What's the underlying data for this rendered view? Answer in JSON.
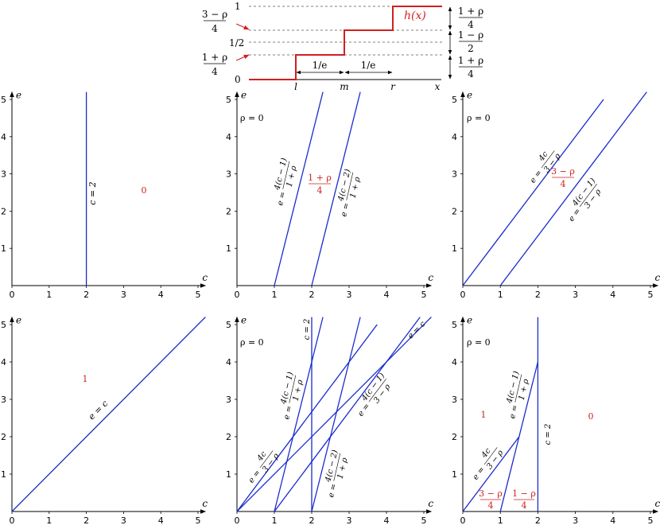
{
  "colors": {
    "axis": "#000000",
    "blue": "#1a2bcc",
    "red": "#d11f1f",
    "dash": "#555555"
  },
  "top_diagram": {
    "func_label": "h(x)",
    "y_labels": [
      "0",
      "1/2",
      "1"
    ],
    "left_fracs": [
      {
        "num": "3 − ρ",
        "den": "4"
      },
      {
        "num": "1 + ρ",
        "den": "4"
      }
    ],
    "right_fracs": [
      {
        "num": "1 + ρ",
        "den": "4"
      },
      {
        "num": "1 − ρ",
        "den": "2"
      },
      {
        "num": "1 + ρ",
        "den": "4"
      }
    ],
    "x_points": [
      "l",
      "m",
      "r",
      "x"
    ],
    "interval_labels": [
      "1/e",
      "1/e"
    ]
  },
  "panels": [
    {
      "id": "p1",
      "axis_x": "c",
      "axis_y": "e",
      "xticks": [
        "0",
        "1",
        "2",
        "3",
        "4",
        "5"
      ],
      "yticks": [
        "1",
        "2",
        "3",
        "4",
        "5"
      ],
      "lines": [
        {
          "name": "e-vs-c",
          "x1": 2,
          "y1": 0,
          "x2": 2,
          "y2": 5.2
        }
      ],
      "labels": [
        {
          "text": "c = 2"
        }
      ],
      "region_labels": [
        {
          "text": "0"
        }
      ]
    },
    {
      "id": "p2",
      "axis_x": "c",
      "axis_y": "e",
      "xticks": [
        "0",
        "1",
        "2",
        "3",
        "4",
        "5"
      ],
      "yticks": [
        "1",
        "2",
        "3",
        "4",
        "5"
      ],
      "rho_label": "ρ = 0",
      "lines": [
        {
          "name": "4c-1",
          "x1": 1,
          "y1": 0,
          "x2": 2.3,
          "y2": 5.2
        },
        {
          "name": "4c-2",
          "x1": 2,
          "y1": 0,
          "x2": 3.3,
          "y2": 5.2
        }
      ],
      "labels": [
        {
          "lhs": "e =",
          "num": "4(c − 1)",
          "den": "1 + ρ"
        },
        {
          "lhs": "e =",
          "num": "4(c − 2)",
          "den": "1 + ρ"
        }
      ],
      "region_labels": [
        {
          "num": "1 + ρ",
          "den": "4"
        }
      ]
    },
    {
      "id": "p3",
      "axis_x": "c",
      "axis_y": "e",
      "xticks": [
        "0",
        "1",
        "2",
        "3",
        "4",
        "5"
      ],
      "yticks": [
        "1",
        "2",
        "3",
        "4",
        "5"
      ],
      "rho_label": "ρ = 0",
      "lines": [
        {
          "name": "4c-3",
          "x1": 0,
          "y1": 0,
          "x2": 3.75,
          "y2": 5
        },
        {
          "name": "4c-1-3",
          "x1": 1,
          "y1": 0,
          "x2": 4.9,
          "y2": 5.2
        }
      ],
      "labels": [
        {
          "lhs": "e =",
          "num": "4c",
          "den": "3 − ρ"
        },
        {
          "lhs": "e =",
          "num": "4(c − 1)",
          "den": "3 − ρ"
        }
      ],
      "region_labels": [
        {
          "num": "3 − ρ",
          "den": "4"
        }
      ]
    },
    {
      "id": "p4",
      "axis_x": "c",
      "axis_y": "e",
      "xticks": [
        "0",
        "1",
        "2",
        "3",
        "4",
        "5"
      ],
      "yticks": [
        "1",
        "2",
        "3",
        "4",
        "5"
      ],
      "lines": [
        {
          "name": "e-eq-c",
          "x1": 0,
          "y1": 0,
          "x2": 5.2,
          "y2": 5.2
        }
      ],
      "labels": [
        {
          "text": "e = c"
        }
      ],
      "region_labels": [
        {
          "text": "1"
        }
      ]
    },
    {
      "id": "p5",
      "axis_x": "c",
      "axis_y": "e",
      "xticks": [
        "0",
        "1",
        "2",
        "3",
        "4",
        "5"
      ],
      "yticks": [
        "1",
        "2",
        "3",
        "4",
        "5"
      ],
      "rho_label": "ρ = 0",
      "lines": [
        {
          "name": "c2",
          "x1": 2,
          "y1": 0,
          "x2": 2,
          "y2": 5.2
        },
        {
          "name": "4c-1",
          "x1": 1,
          "y1": 0,
          "x2": 2.3,
          "y2": 5.2
        },
        {
          "name": "4c-2",
          "x1": 2,
          "y1": 0,
          "x2": 3.3,
          "y2": 5.2
        },
        {
          "name": "4c-3",
          "x1": 0,
          "y1": 0,
          "x2": 3.75,
          "y2": 5
        },
        {
          "name": "4c-1-3",
          "x1": 1,
          "y1": 0,
          "x2": 4.9,
          "y2": 5.2
        },
        {
          "name": "e-eq-c",
          "x1": 0,
          "y1": 0,
          "x2": 5.2,
          "y2": 5.2
        }
      ],
      "labels": [
        {
          "text": "c = 2"
        },
        {
          "text": "e = c"
        },
        {
          "lhs": "e =",
          "num": "4(c − 1)",
          "den": "1 + ρ"
        },
        {
          "lhs": "e =",
          "num": "4(c − 1)",
          "den": "3 − ρ"
        },
        {
          "lhs": "e =",
          "num": "4c",
          "den": "3 − ρ"
        },
        {
          "lhs": "e =",
          "num": "4(c − 2)",
          "den": "1 + ρ"
        }
      ]
    },
    {
      "id": "p6",
      "axis_x": "c",
      "axis_y": "e",
      "xticks": [
        "0",
        "1",
        "2",
        "3",
        "4",
        "5"
      ],
      "yticks": [
        "1",
        "2",
        "3",
        "4",
        "5"
      ],
      "rho_label": "ρ = 0",
      "lines": [
        {
          "name": "seg-a",
          "x1": 0,
          "y1": 0,
          "x2": 1.5,
          "y2": 2
        },
        {
          "name": "seg-b",
          "x1": 1,
          "y1": 0,
          "x2": 1.5,
          "y2": 2
        },
        {
          "name": "seg-c",
          "x1": 1.5,
          "y1": 2,
          "x2": 2,
          "y2": 4
        },
        {
          "name": "c2",
          "x1": 2,
          "y1": 0,
          "x2": 2,
          "y2": 5.2
        }
      ],
      "labels": [
        {
          "text": "c = 2"
        },
        {
          "lhs": "e =",
          "num": "4(c − 1)",
          "den": "1 + ρ"
        },
        {
          "lhs": "e =",
          "num": "4c",
          "den": "3 − ρ"
        }
      ],
      "region_labels": [
        {
          "text": "1"
        },
        {
          "text": "0"
        },
        {
          "num": "3 − ρ",
          "den": "4"
        },
        {
          "num": "1 − ρ",
          "den": "4"
        }
      ]
    }
  ]
}
